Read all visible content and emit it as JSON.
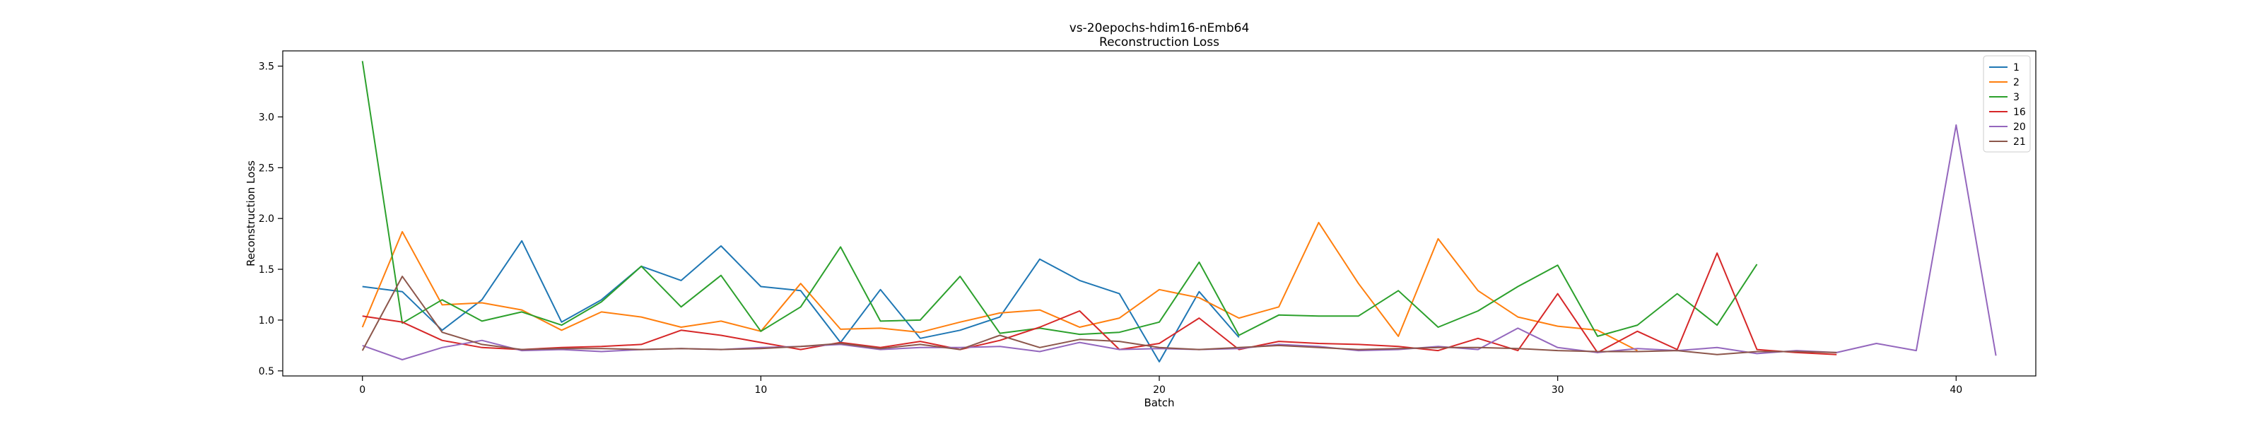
{
  "chart_data": {
    "type": "line",
    "title": "vs-20epochs-hdim16-nEmb64",
    "subtitle": "Reconstruction Loss",
    "xlabel": "Batch",
    "ylabel": "Reconstruction Loss",
    "xlim": [
      -2,
      42
    ],
    "ylim": [
      0.45,
      3.65
    ],
    "xticks": [
      0,
      10,
      20,
      30,
      40
    ],
    "yticks": [
      0.5,
      1.0,
      1.5,
      2.0,
      2.5,
      3.0,
      3.5
    ],
    "xtick_labels": [
      "0",
      "10",
      "20",
      "30",
      "40"
    ],
    "ytick_labels": [
      "0.5",
      "1.0",
      "1.5",
      "2.0",
      "2.5",
      "3.0",
      "3.5"
    ],
    "grid": false,
    "legend_position": "top-right",
    "series": [
      {
        "name": "1",
        "color": "#1f77b4",
        "values": [
          1.33,
          1.28,
          0.9,
          1.2,
          1.78,
          0.98,
          1.2,
          1.53,
          1.39,
          1.73,
          1.33,
          1.29,
          0.78,
          1.3,
          0.82,
          0.9,
          1.03,
          1.6,
          1.39,
          1.26,
          0.59,
          1.28,
          0.83
        ]
      },
      {
        "name": "2",
        "color": "#ff7f0e",
        "values": [
          0.93,
          1.87,
          1.15,
          1.17,
          1.1,
          0.9,
          1.08,
          1.03,
          0.93,
          0.99,
          0.89,
          1.36,
          0.91,
          0.92,
          0.88,
          0.98,
          1.07,
          1.1,
          0.93,
          1.02,
          1.3,
          1.22,
          1.02,
          1.13,
          1.96,
          1.36,
          0.84,
          1.8,
          1.29,
          1.03,
          0.94,
          0.9,
          0.7
        ]
      },
      {
        "name": "3",
        "color": "#2ca02c",
        "values": [
          3.55,
          0.97,
          1.2,
          0.99,
          1.08,
          0.95,
          1.18,
          1.53,
          1.13,
          1.44,
          0.89,
          1.13,
          1.72,
          0.99,
          1.0,
          1.43,
          0.87,
          0.92,
          0.86,
          0.88,
          0.98,
          1.57,
          0.85,
          1.05,
          1.04,
          1.04,
          1.29,
          0.93,
          1.09,
          1.33,
          1.54,
          0.84,
          0.95,
          1.26,
          0.95,
          1.55
        ]
      },
      {
        "name": "16",
        "color": "#d62728",
        "values": [
          1.04,
          0.98,
          0.8,
          0.73,
          0.71,
          0.73,
          0.74,
          0.76,
          0.9,
          0.85,
          0.78,
          0.71,
          0.78,
          0.73,
          0.79,
          0.71,
          0.8,
          0.93,
          1.09,
          0.71,
          0.77,
          1.02,
          0.71,
          0.79,
          0.77,
          0.76,
          0.74,
          0.7,
          0.82,
          0.7,
          1.26,
          0.68,
          0.89,
          0.71,
          1.66,
          0.71,
          0.68,
          0.66
        ]
      },
      {
        "name": "20",
        "color": "#9467bd",
        "values": [
          0.75,
          0.61,
          0.73,
          0.8,
          0.7,
          0.71,
          0.69,
          0.71,
          0.72,
          0.71,
          0.73,
          0.74,
          0.76,
          0.71,
          0.73,
          0.73,
          0.74,
          0.69,
          0.78,
          0.71,
          0.72,
          0.71,
          0.72,
          0.76,
          0.74,
          0.7,
          0.71,
          0.74,
          0.71,
          0.92,
          0.73,
          0.68,
          0.72,
          0.7,
          0.73,
          0.67,
          0.7,
          0.68,
          0.77,
          0.7,
          2.92,
          0.65
        ]
      },
      {
        "name": "21",
        "color": "#8c564b",
        "values": [
          0.7,
          1.43,
          0.88,
          0.76,
          0.71,
          0.72,
          0.72,
          0.71,
          0.72,
          0.71,
          0.72,
          0.74,
          0.77,
          0.72,
          0.76,
          0.71,
          0.85,
          0.73,
          0.81,
          0.79,
          0.73,
          0.71,
          0.73,
          0.75,
          0.73,
          0.71,
          0.72,
          0.73,
          0.73,
          0.72,
          0.7,
          0.69,
          0.69,
          0.7,
          0.66,
          0.69,
          0.69,
          0.68
        ]
      }
    ]
  }
}
